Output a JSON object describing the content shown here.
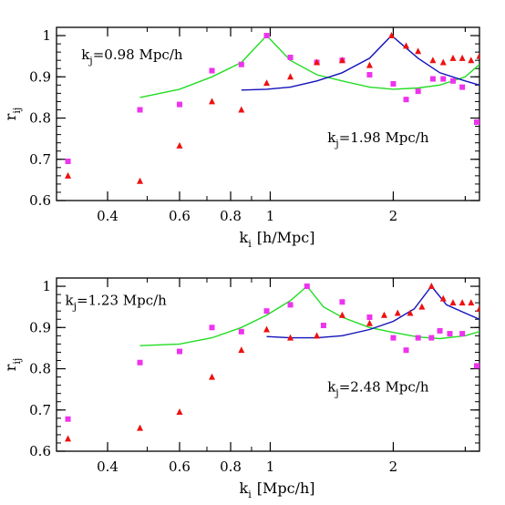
{
  "chart_data": [
    {
      "type": "scatter",
      "xscale": "log",
      "xlim": [
        0.3,
        3.25
      ],
      "ylim": [
        0.6,
        1.02
      ],
      "xlabel": "k",
      "xlabel_sub": "i",
      "xlabel_unit": "[h/Mpc]",
      "ylabel": "r",
      "ylabel_sub": "ij",
      "xticks": [
        {
          "value": 0.4,
          "label": "0.4"
        },
        {
          "value": 0.6,
          "label": "0.6"
        },
        {
          "value": 0.8,
          "label": "0.8"
        },
        {
          "value": 1.0,
          "label": "1"
        },
        {
          "value": 2.0,
          "label": "2"
        }
      ],
      "yticks": [
        {
          "value": 0.6,
          "label": "0.6"
        },
        {
          "value": 0.7,
          "label": "0.7"
        },
        {
          "value": 0.8,
          "label": "0.8"
        },
        {
          "value": 0.9,
          "label": "0.9"
        },
        {
          "value": 1.0,
          "label": "1"
        }
      ],
      "annotations": [
        {
          "main": "k",
          "sub": "j",
          "rest": "=0.98 Mpc/h",
          "x": 0.345,
          "y": 0.943
        },
        {
          "main": "k",
          "sub": "j",
          "rest": "=1.98 Mpc/h",
          "x": 1.38,
          "y": 0.742
        }
      ],
      "series": [
        {
          "style": "line",
          "color": "#22dd22",
          "peak": 0.98,
          "x": [
            0.48,
            0.6,
            0.72,
            0.85,
            0.98,
            1.12,
            1.3,
            1.5,
            1.75,
            2.0,
            2.3,
            2.6,
            3.0,
            3.25
          ],
          "y": [
            0.85,
            0.87,
            0.9,
            0.935,
            1.0,
            0.94,
            0.905,
            0.89,
            0.875,
            0.87,
            0.873,
            0.88,
            0.9,
            0.93
          ]
        },
        {
          "style": "line",
          "color": "#1111bb",
          "peak": 1.98,
          "x": [
            0.85,
            0.98,
            1.12,
            1.3,
            1.5,
            1.75,
            1.98,
            2.3,
            2.6,
            3.0,
            3.25
          ],
          "y": [
            0.868,
            0.87,
            0.875,
            0.89,
            0.91,
            0.945,
            1.0,
            0.945,
            0.91,
            0.89,
            0.88
          ]
        },
        {
          "style": "square",
          "color": "#ee33ee",
          "x": [
            0.32,
            0.48,
            0.6,
            0.72,
            0.85,
            0.98,
            1.12,
            1.3,
            1.5,
            1.75,
            2.0,
            2.15,
            2.3,
            2.5,
            2.65,
            2.8,
            2.95,
            3.2
          ],
          "y": [
            0.695,
            0.82,
            0.833,
            0.915,
            0.93,
            1.0,
            0.947,
            0.935,
            0.94,
            0.905,
            0.883,
            0.845,
            0.865,
            0.895,
            0.895,
            0.89,
            0.875,
            0.79
          ]
        },
        {
          "style": "triangle",
          "color": "#ee1111",
          "x": [
            0.32,
            0.48,
            0.6,
            0.72,
            0.85,
            0.98,
            1.12,
            1.3,
            1.5,
            1.75,
            1.98,
            2.15,
            2.3,
            2.5,
            2.65,
            2.8,
            2.95,
            3.1,
            3.25
          ],
          "y": [
            0.66,
            0.647,
            0.733,
            0.84,
            0.82,
            0.885,
            0.9,
            0.935,
            0.94,
            0.928,
            1.0,
            0.975,
            0.962,
            0.94,
            0.935,
            0.945,
            0.945,
            0.94,
            0.95
          ]
        }
      ]
    },
    {
      "type": "scatter",
      "xscale": "log",
      "xlim": [
        0.3,
        3.25
      ],
      "ylim": [
        0.6,
        1.02
      ],
      "xlabel": "k",
      "xlabel_sub": "i",
      "xlabel_unit": "[Mpc/h]",
      "ylabel": "r",
      "ylabel_sub": "ij",
      "xticks": [
        {
          "value": 0.4,
          "label": "0.4"
        },
        {
          "value": 0.6,
          "label": "0.6"
        },
        {
          "value": 0.8,
          "label": "0.8"
        },
        {
          "value": 1.0,
          "label": "1"
        },
        {
          "value": 2.0,
          "label": "2"
        }
      ],
      "yticks": [
        {
          "value": 0.6,
          "label": "0.6"
        },
        {
          "value": 0.7,
          "label": "0.7"
        },
        {
          "value": 0.8,
          "label": "0.8"
        },
        {
          "value": 0.9,
          "label": "0.9"
        },
        {
          "value": 1.0,
          "label": "1"
        }
      ],
      "annotations": [
        {
          "main": "k",
          "sub": "j",
          "rest": "=1.23 Mpc/h",
          "x": 0.315,
          "y": 0.955
        },
        {
          "main": "k",
          "sub": "j",
          "rest": "=2.48 Mpc/h",
          "x": 1.38,
          "y": 0.745
        }
      ],
      "series": [
        {
          "style": "line",
          "color": "#22dd22",
          "peak": 1.23,
          "x": [
            0.48,
            0.6,
            0.72,
            0.85,
            0.98,
            1.12,
            1.23,
            1.35,
            1.5,
            1.75,
            2.0,
            2.3,
            2.6,
            3.0,
            3.25
          ],
          "y": [
            0.856,
            0.86,
            0.875,
            0.9,
            0.93,
            0.965,
            1.0,
            0.95,
            0.925,
            0.9,
            0.888,
            0.877,
            0.873,
            0.88,
            0.89
          ]
        },
        {
          "style": "line",
          "color": "#1111bb",
          "peak": 2.48,
          "x": [
            0.98,
            1.12,
            1.3,
            1.5,
            1.75,
            2.0,
            2.25,
            2.48,
            2.7,
            3.0,
            3.25
          ],
          "y": [
            0.878,
            0.875,
            0.875,
            0.88,
            0.895,
            0.915,
            0.945,
            1.0,
            0.955,
            0.935,
            0.92
          ]
        },
        {
          "style": "square",
          "color": "#ee33ee",
          "x": [
            0.32,
            0.48,
            0.6,
            0.72,
            0.85,
            0.98,
            1.12,
            1.23,
            1.35,
            1.5,
            1.75,
            2.0,
            2.15,
            2.3,
            2.48,
            2.6,
            2.75,
            2.95,
            3.2
          ],
          "y": [
            0.678,
            0.815,
            0.842,
            0.9,
            0.89,
            0.94,
            0.955,
            1.0,
            0.905,
            0.962,
            0.925,
            0.875,
            0.845,
            0.875,
            0.875,
            0.892,
            0.885,
            0.885,
            0.807
          ]
        },
        {
          "style": "triangle",
          "color": "#ee1111",
          "x": [
            0.32,
            0.48,
            0.6,
            0.72,
            0.85,
            0.98,
            1.12,
            1.3,
            1.5,
            1.75,
            1.9,
            2.05,
            2.2,
            2.35,
            2.48,
            2.65,
            2.8,
            2.95,
            3.1,
            3.25
          ],
          "y": [
            0.63,
            0.656,
            0.695,
            0.78,
            0.845,
            0.895,
            0.875,
            0.88,
            0.93,
            0.91,
            0.93,
            0.935,
            0.935,
            0.95,
            1.0,
            0.97,
            0.96,
            0.96,
            0.96,
            0.945
          ]
        }
      ]
    }
  ]
}
